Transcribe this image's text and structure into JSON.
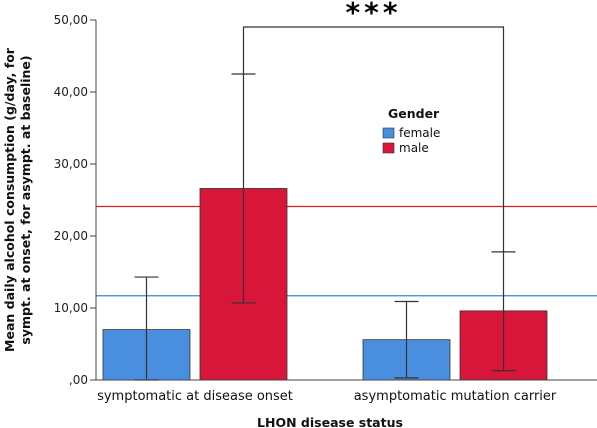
{
  "chart_data": {
    "type": "bar",
    "title": "",
    "xlabel": "LHON disease status",
    "ylabel": [
      "Mean daily alcohol consumption (g/day, for",
      "sympt. at onset, for asympt. at baseline)"
    ],
    "ylim": [
      0,
      50
    ],
    "yticks": [
      0,
      10,
      20,
      30,
      40,
      50
    ],
    "ytick_labels": [
      ",00",
      "10,00",
      "20,00",
      "30,00",
      "40,00",
      "50,00"
    ],
    "categories": [
      "symptomatic at disease onset",
      "asymptomatic mutation carrier"
    ],
    "series": [
      {
        "name": "female",
        "color": "#4a8ee0",
        "values": [
          7.0,
          5.6
        ],
        "error_low": [
          0.0,
          0.3
        ],
        "error_high": [
          14.3,
          10.9
        ]
      },
      {
        "name": "male",
        "color": "#d8163a",
        "values": [
          26.6,
          9.6
        ],
        "error_low": [
          10.7,
          1.3
        ],
        "error_high": [
          42.5,
          17.8
        ]
      }
    ],
    "reference_lines": [
      {
        "value": 24.1,
        "color": "#d81e1e"
      },
      {
        "value": 11.7,
        "color": "#3a86c8"
      }
    ],
    "legend": {
      "title": "Gender",
      "position": "top-center",
      "items": [
        "female",
        "male"
      ]
    },
    "significance": {
      "label": "***",
      "from": "male, symptomatic at disease onset",
      "to": "male, asymptomatic mutation carrier"
    },
    "grid": false
  }
}
